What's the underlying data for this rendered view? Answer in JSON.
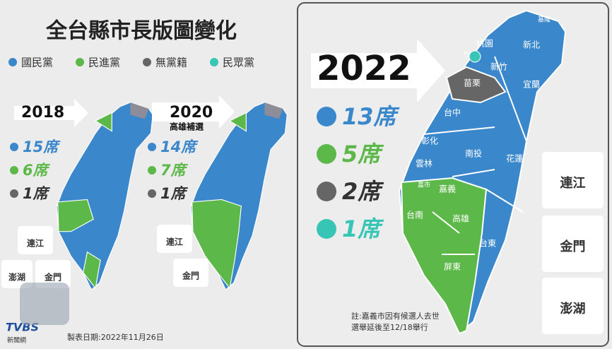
{
  "title": "全台縣市長版圖變化",
  "legend": [
    {
      "label": "國民黨",
      "color": "#3a87cc"
    },
    {
      "label": "民進黨",
      "color": "#5cb848"
    },
    {
      "label": "無黨籍",
      "color": "#666666"
    },
    {
      "label": "民眾黨",
      "color": "#37c6b6"
    }
  ],
  "panels": [
    {
      "year": "2018",
      "seats": [
        "15席",
        "6席",
        "1席"
      ],
      "islands": [
        "連江",
        "澎湖",
        "金門"
      ]
    },
    {
      "year": "2020",
      "subtitle": "高雄補選",
      "seats": [
        "14席",
        "7席",
        "1席"
      ],
      "islands": [
        "連江",
        "金門"
      ]
    },
    {
      "year": "2022",
      "seats": [
        "13席",
        "5席",
        "2席",
        "1席"
      ],
      "map_labels": [
        "基隆",
        "桃園",
        "新北",
        "竹",
        "新竹",
        "苗栗",
        "宜蘭",
        "台中",
        "彰化",
        "南投",
        "花蓮",
        "雲林",
        "嘉市",
        "嘉義",
        "台南",
        "高雄",
        "屏東",
        "台東"
      ],
      "islands": [
        "連江",
        "金門",
        "澎湖"
      ],
      "note": [
        "註:嘉義市因有候選人去世",
        "選舉延後至12/18舉行"
      ]
    }
  ],
  "source": {
    "logo": "TVBS",
    "logo_sub": "新聞網",
    "date": "製表日期:2022年11月26日"
  }
}
